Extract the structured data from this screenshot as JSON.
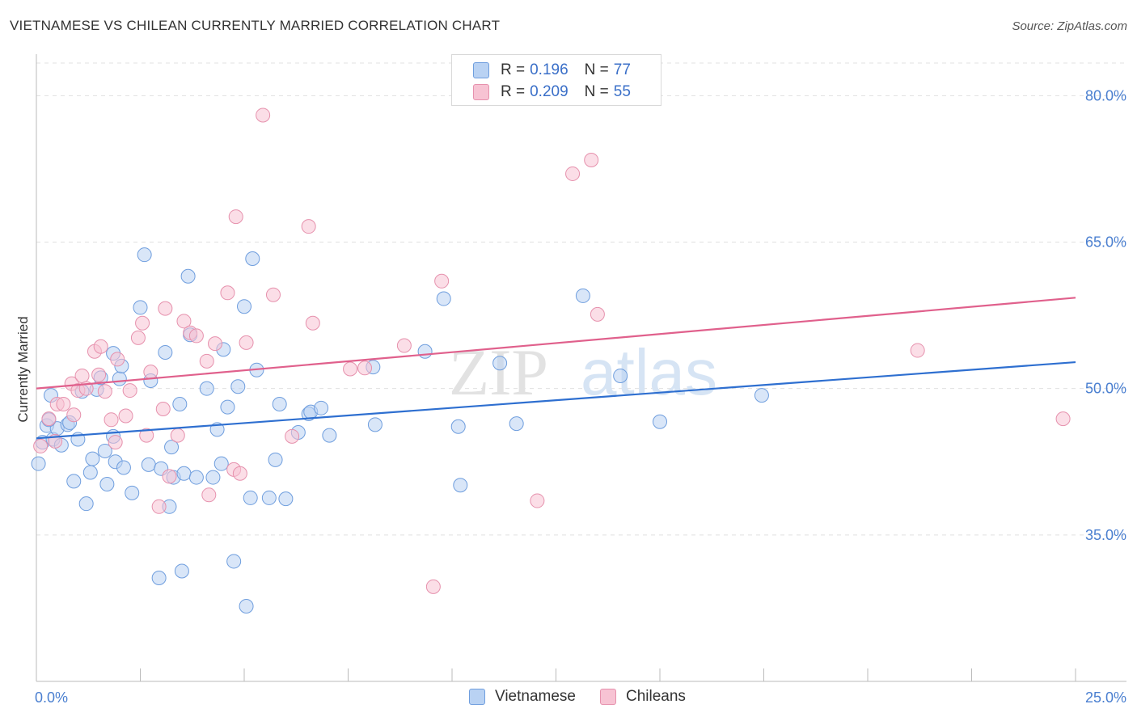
{
  "title": "VIETNAMESE VS CHILEAN CURRENTLY MARRIED CORRELATION CHART",
  "source": "Source: ZipAtlas.com",
  "watermark": {
    "zip": "ZIP",
    "atlas": "atlas"
  },
  "legend": {
    "rows": [
      {
        "r_label": "R =",
        "r_value": "0.196",
        "n_label": "N =",
        "n_value": "77"
      },
      {
        "r_label": "R =",
        "r_value": "0.209",
        "n_label": "N =",
        "n_value": "55"
      }
    ]
  },
  "bottom_legend": [
    "Vietnamese",
    "Chileans"
  ],
  "colors": {
    "vietnamese_fill": "#b9d2f3",
    "vietnamese_stroke": "#6f9ede",
    "vietnamese_line": "#2e6fd0",
    "chilean_fill": "#f7c3d3",
    "chilean_stroke": "#e691ad",
    "chilean_line": "#e0608c",
    "tick_text": "#4a7fd0",
    "grid": "#e0e0e0"
  },
  "chart_data": {
    "type": "scatter",
    "title": "VIETNAMESE VS CHILEAN CURRENTLY MARRIED CORRELATION CHART",
    "xlabel": "",
    "ylabel": "Currently Married",
    "xlim": [
      0,
      25
    ],
    "ylim": [
      20,
      84
    ],
    "x_tick_labels": [
      "0.0%",
      "25.0%"
    ],
    "y_ticks": [
      35,
      50,
      65,
      80
    ],
    "y_tick_labels": [
      "35.0%",
      "50.0%",
      "65.0%",
      "80.0%"
    ],
    "grid": "horizontal dashed",
    "legend_position": "top-center",
    "series": [
      {
        "name": "Vietnamese",
        "r": 0.196,
        "n": 77,
        "trend": {
          "x": [
            0,
            25
          ],
          "y": [
            44.9,
            52.7
          ]
        },
        "points": [
          [
            0.05,
            42.3
          ],
          [
            0.15,
            44.5
          ],
          [
            0.25,
            46.2
          ],
          [
            0.35,
            49.3
          ],
          [
            0.4,
            44.8
          ],
          [
            0.5,
            45.9
          ],
          [
            0.6,
            44.2
          ],
          [
            0.75,
            46.3
          ],
          [
            0.8,
            46.5
          ],
          [
            0.9,
            40.5
          ],
          [
            1.0,
            44.8
          ],
          [
            1.1,
            49.7
          ],
          [
            1.2,
            38.2
          ],
          [
            1.35,
            42.8
          ],
          [
            1.45,
            49.9
          ],
          [
            1.55,
            51.1
          ],
          [
            1.65,
            43.6
          ],
          [
            1.7,
            40.2
          ],
          [
            1.85,
            53.6
          ],
          [
            1.85,
            45.1
          ],
          [
            1.9,
            42.5
          ],
          [
            2.0,
            51.0
          ],
          [
            2.05,
            52.3
          ],
          [
            2.1,
            41.9
          ],
          [
            2.3,
            39.3
          ],
          [
            2.5,
            58.3
          ],
          [
            2.6,
            63.7
          ],
          [
            2.7,
            42.2
          ],
          [
            2.75,
            50.8
          ],
          [
            2.95,
            30.6
          ],
          [
            3.0,
            41.8
          ],
          [
            3.1,
            53.7
          ],
          [
            3.2,
            37.9
          ],
          [
            3.25,
            44.0
          ],
          [
            3.3,
            40.9
          ],
          [
            3.45,
            48.4
          ],
          [
            3.55,
            41.3
          ],
          [
            3.5,
            31.3
          ],
          [
            3.65,
            61.5
          ],
          [
            3.7,
            55.5
          ],
          [
            3.85,
            40.9
          ],
          [
            4.1,
            50.0
          ],
          [
            4.25,
            40.9
          ],
          [
            4.35,
            45.8
          ],
          [
            4.45,
            42.3
          ],
          [
            4.5,
            54.0
          ],
          [
            4.6,
            48.1
          ],
          [
            4.75,
            32.3
          ],
          [
            4.85,
            50.2
          ],
          [
            5.0,
            58.4
          ],
          [
            5.05,
            27.7
          ],
          [
            5.15,
            38.8
          ],
          [
            5.2,
            63.3
          ],
          [
            5.3,
            51.9
          ],
          [
            5.6,
            38.8
          ],
          [
            5.75,
            42.7
          ],
          [
            5.85,
            48.4
          ],
          [
            6.0,
            38.7
          ],
          [
            6.3,
            45.5
          ],
          [
            6.55,
            47.4
          ],
          [
            6.6,
            47.6
          ],
          [
            6.85,
            48.0
          ],
          [
            7.05,
            45.2
          ],
          [
            8.1,
            52.2
          ],
          [
            8.15,
            46.3
          ],
          [
            9.35,
            53.8
          ],
          [
            9.8,
            59.2
          ],
          [
            10.15,
            46.1
          ],
          [
            10.2,
            40.1
          ],
          [
            11.15,
            52.6
          ],
          [
            11.55,
            46.4
          ],
          [
            13.15,
            59.5
          ],
          [
            14.05,
            51.3
          ],
          [
            15.0,
            46.6
          ],
          [
            17.45,
            49.3
          ],
          [
            0.3,
            46.8
          ],
          [
            1.3,
            41.4
          ]
        ]
      },
      {
        "name": "Chileans",
        "r": 0.209,
        "n": 55,
        "trend": {
          "x": [
            0,
            25
          ],
          "y": [
            50.0,
            59.3
          ]
        },
        "points": [
          [
            0.1,
            44.1
          ],
          [
            0.3,
            46.9
          ],
          [
            0.5,
            48.4
          ],
          [
            0.65,
            48.4
          ],
          [
            0.85,
            50.5
          ],
          [
            0.9,
            47.3
          ],
          [
            1.0,
            49.8
          ],
          [
            1.1,
            51.3
          ],
          [
            1.2,
            50.0
          ],
          [
            1.4,
            53.8
          ],
          [
            1.55,
            54.3
          ],
          [
            1.65,
            49.7
          ],
          [
            1.8,
            46.8
          ],
          [
            1.9,
            44.5
          ],
          [
            1.95,
            53.0
          ],
          [
            2.15,
            47.2
          ],
          [
            2.25,
            49.8
          ],
          [
            2.45,
            55.2
          ],
          [
            2.55,
            56.7
          ],
          [
            2.65,
            45.2
          ],
          [
            2.75,
            51.7
          ],
          [
            2.95,
            37.9
          ],
          [
            3.05,
            47.9
          ],
          [
            3.1,
            58.2
          ],
          [
            3.2,
            41.0
          ],
          [
            3.4,
            45.2
          ],
          [
            3.55,
            56.9
          ],
          [
            3.7,
            55.7
          ],
          [
            3.85,
            55.4
          ],
          [
            4.1,
            52.8
          ],
          [
            4.15,
            39.1
          ],
          [
            4.3,
            54.6
          ],
          [
            4.6,
            59.8
          ],
          [
            4.75,
            41.7
          ],
          [
            4.8,
            67.6
          ],
          [
            4.9,
            41.3
          ],
          [
            5.05,
            54.7
          ],
          [
            5.45,
            78.0
          ],
          [
            5.7,
            59.6
          ],
          [
            6.15,
            45.1
          ],
          [
            6.55,
            66.6
          ],
          [
            6.65,
            56.7
          ],
          [
            7.55,
            52.0
          ],
          [
            7.9,
            52.1
          ],
          [
            8.85,
            54.4
          ],
          [
            9.55,
            29.7
          ],
          [
            9.75,
            61.0
          ],
          [
            12.05,
            38.5
          ],
          [
            12.9,
            72.0
          ],
          [
            13.35,
            73.4
          ],
          [
            13.5,
            57.6
          ],
          [
            21.2,
            53.9
          ],
          [
            24.7,
            46.9
          ],
          [
            0.45,
            44.6
          ],
          [
            1.5,
            51.4
          ]
        ]
      }
    ]
  }
}
